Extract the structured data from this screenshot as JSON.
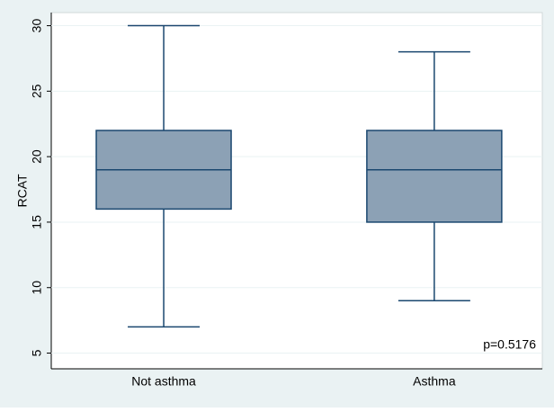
{
  "chart_data": {
    "type": "box",
    "ylabel": "RCAT",
    "categories": [
      "Not asthma",
      "Asthma"
    ],
    "boxes": [
      {
        "min": 7,
        "q1": 16,
        "median": 19,
        "q3": 22,
        "max": 30
      },
      {
        "min": 9,
        "q1": 15,
        "median": 19,
        "q3": 22,
        "max": 28
      }
    ],
    "color": "#8ca1b5",
    "line_color": "#1a476f",
    "ylim": [
      3.8,
      31
    ],
    "yticks": [
      5,
      10,
      15,
      20,
      25,
      30
    ],
    "annotation": "p=0.5176"
  }
}
